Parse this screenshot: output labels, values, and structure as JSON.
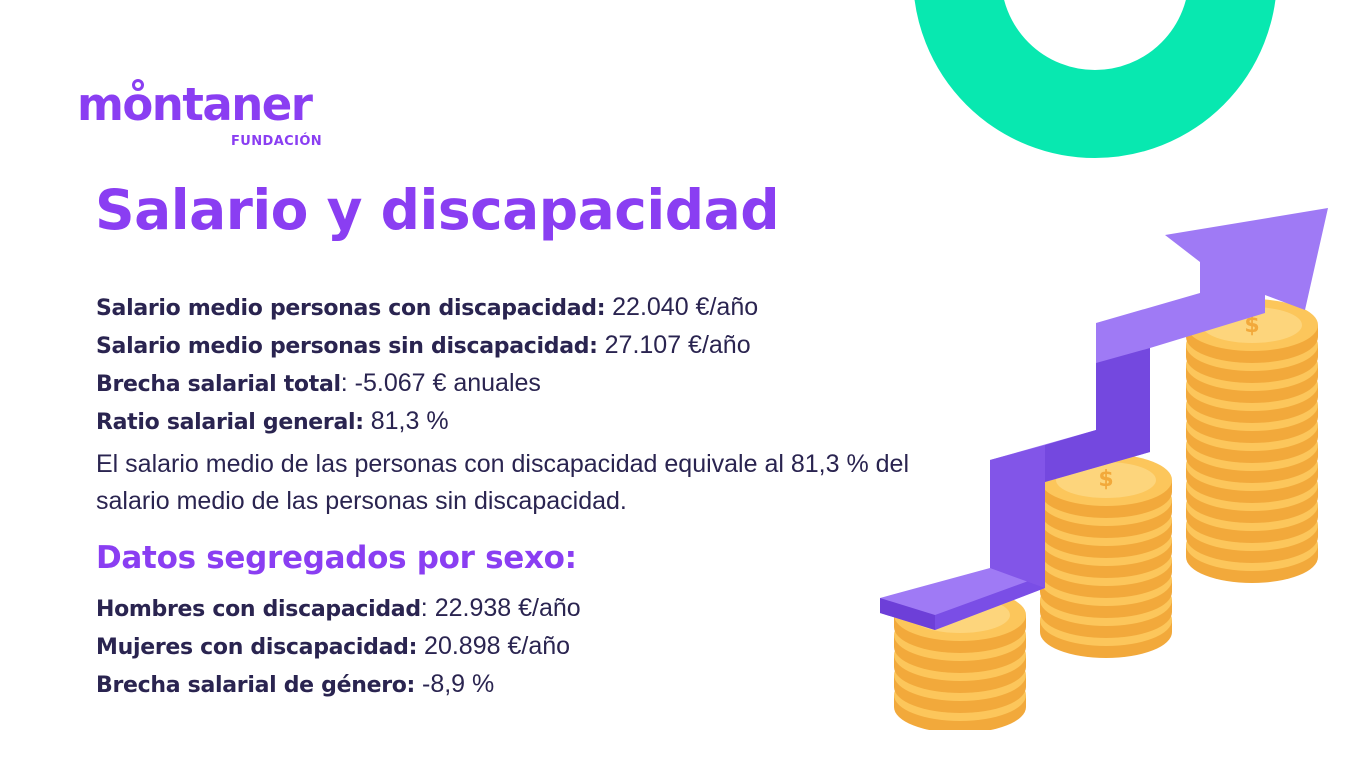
{
  "brand": {
    "name": "montaner",
    "sub": "FUNDACIÓN"
  },
  "title": "Salario y discapacidad",
  "stats": [
    {
      "label": "Salario medio personas con discapacidad:",
      "value": " 22.040 €/año"
    },
    {
      "label": "Salario medio personas sin discapacidad:",
      "value": " 27.107 €/año"
    },
    {
      "label": "Brecha salarial total",
      "value": ": -5.067 € anuales"
    },
    {
      "label": "Ratio salarial general:",
      "value": " 81,3 %"
    }
  ],
  "paragraph": "El salario medio de las personas con discapacidad equivale al 81,3 % del salario medio de las personas sin discapacidad.",
  "section_title": "Datos segregados por sexo:",
  "gender_stats": [
    {
      "label": "Hombres con discapacidad",
      "value": ": 22.938 €/año"
    },
    {
      "label": "Mujeres con discapacidad:",
      "value": " 20.898 €/año"
    },
    {
      "label": "Brecha salarial de género:",
      "value": " -8,9 %"
    }
  ],
  "colors": {
    "accent": "#8a3ef2",
    "teal": "#08e8b0",
    "text": "#2a2450",
    "coin": "#fcc65b",
    "arrow": "#8e64f0"
  }
}
